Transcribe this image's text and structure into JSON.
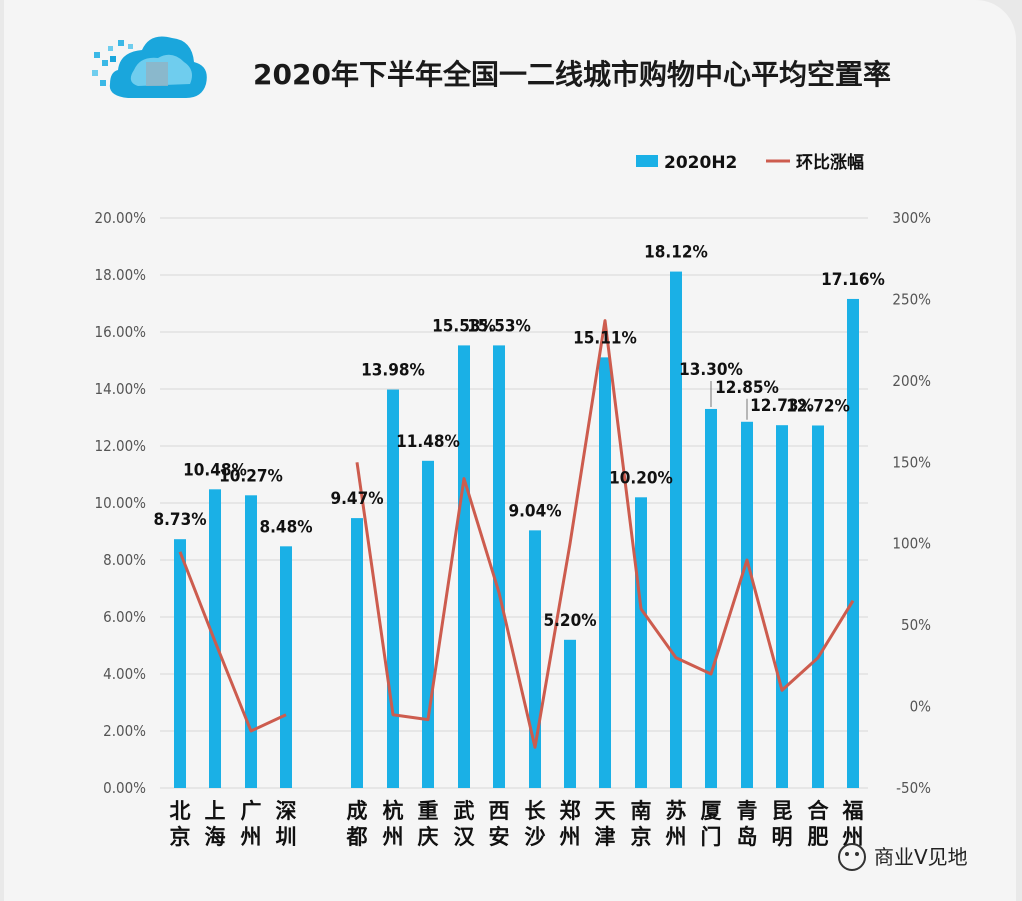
{
  "chart_data": {
    "type": "bar",
    "title": "2020年下半年全国一二线城市购物中心平均空置率",
    "legend": [
      "2020H2",
      "环比涨幅"
    ],
    "legend_position": "top-right",
    "categories": [
      "北京",
      "上海",
      "广州",
      "深圳",
      "成都",
      "杭州",
      "重庆",
      "武汉",
      "西安",
      "长沙",
      "郑州",
      "天津",
      "南京",
      "苏州",
      "厦门",
      "青岛",
      "昆明",
      "合肥",
      "福州"
    ],
    "bar_labels": [
      "8.73%",
      "10.48%",
      "10.27%",
      "8.48%",
      "9.47%",
      "13.98%",
      "11.48%",
      "15.53%",
      "15.53%",
      "9.04%",
      "5.20%",
      "15.11%",
      "10.20%",
      "18.12%",
      "13.30%",
      "12.85%",
      "12.73%",
      "12.72%",
      "17.16%"
    ],
    "series": [
      {
        "name": "2020H2",
        "type": "bar",
        "axis": "left",
        "values": [
          8.73,
          10.48,
          10.27,
          8.48,
          9.47,
          13.98,
          11.48,
          15.53,
          15.53,
          9.04,
          5.2,
          15.11,
          10.2,
          18.12,
          13.3,
          12.85,
          12.73,
          12.72,
          17.16
        ]
      },
      {
        "name": "环比涨幅",
        "type": "line",
        "axis": "right",
        "color": "#cd5c4e",
        "segments": [
          [
            [
              0,
              95
            ],
            [
              1,
              40
            ],
            [
              2,
              -15
            ],
            [
              3,
              -5
            ]
          ],
          [
            [
              4,
              150
            ],
            [
              5,
              -5
            ],
            [
              6,
              -8
            ],
            [
              7,
              140
            ],
            [
              8,
              70
            ],
            [
              9,
              -25
            ],
            [
              10,
              100
            ],
            [
              11,
              237
            ],
            [
              12,
              60
            ],
            [
              13,
              30
            ],
            [
              14,
              20
            ],
            [
              15,
              90
            ],
            [
              16,
              10
            ],
            [
              17,
              30
            ],
            [
              18,
              65
            ]
          ]
        ]
      }
    ],
    "y_left": {
      "min": 0,
      "max": 20,
      "step": 2,
      "tick_labels": [
        "0.00%",
        "2.00%",
        "4.00%",
        "6.00%",
        "8.00%",
        "10.00%",
        "12.00%",
        "14.00%",
        "16.00%",
        "18.00%",
        "20.00%"
      ]
    },
    "y_right": {
      "min": -50,
      "max": 300,
      "step": 50,
      "tick_labels": [
        "-50%",
        "0%",
        "50%",
        "100%",
        "150%",
        "200%",
        "250%",
        "300%"
      ]
    },
    "grid": true,
    "bar_color": "#1ab0e6"
  },
  "watermark": "商业V见地"
}
